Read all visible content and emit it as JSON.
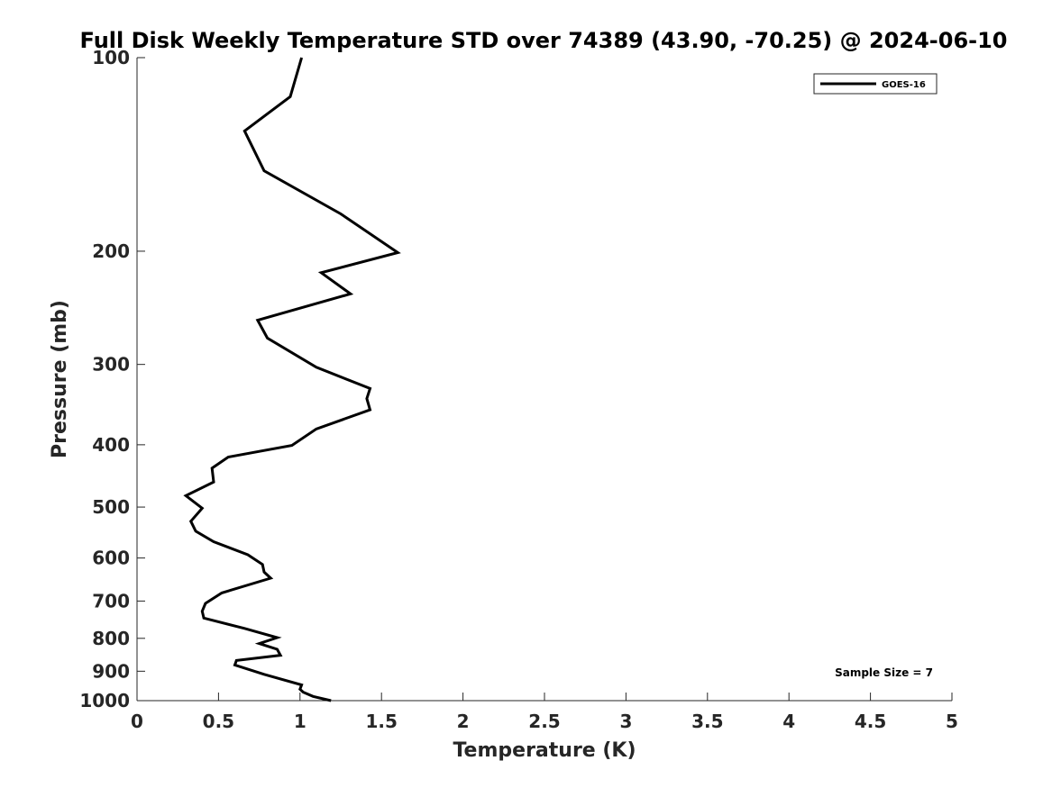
{
  "chart_data": {
    "type": "line",
    "title": "Full Disk Weekly Temperature STD over 74389 (43.90, -70.25) @ 2024-06-10",
    "xlabel": "Temperature (K)",
    "ylabel": "Pressure (mb)",
    "xlim": [
      0,
      5
    ],
    "ylim": [
      100,
      1000
    ],
    "y_scale": "log",
    "y_reversed": true,
    "x_ticks": [
      "0",
      "0.5",
      "1",
      "1.5",
      "2",
      "2.5",
      "3",
      "3.5",
      "4",
      "4.5",
      "5"
    ],
    "x_tick_values": [
      0,
      0.5,
      1,
      1.5,
      2,
      2.5,
      3,
      3.5,
      4,
      4.5,
      5
    ],
    "y_ticks": [
      "100",
      "200",
      "300",
      "400",
      "500",
      "600",
      "700",
      "800",
      "900",
      "1000"
    ],
    "y_tick_values": [
      100,
      200,
      300,
      400,
      500,
      600,
      700,
      800,
      900,
      1000
    ],
    "grid": false,
    "legend": {
      "placement": "top-right",
      "entries": [
        "GOES-16"
      ]
    },
    "annotation": "Sample Size = 7",
    "series": [
      {
        "name": "GOES-16",
        "color": "#000000",
        "points": [
          [
            1.01,
            100
          ],
          [
            0.94,
            115
          ],
          [
            0.66,
            130
          ],
          [
            0.78,
            150
          ],
          [
            1.25,
            175
          ],
          [
            1.6,
            201
          ],
          [
            1.13,
            216
          ],
          [
            1.31,
            233
          ],
          [
            0.74,
            256
          ],
          [
            0.8,
            273
          ],
          [
            1.1,
            303
          ],
          [
            1.43,
            327
          ],
          [
            1.41,
            339
          ],
          [
            1.43,
            353
          ],
          [
            1.1,
            378
          ],
          [
            0.95,
            401
          ],
          [
            0.56,
            418
          ],
          [
            0.46,
            435
          ],
          [
            0.47,
            457
          ],
          [
            0.3,
            480
          ],
          [
            0.4,
            502
          ],
          [
            0.33,
            526
          ],
          [
            0.36,
            545
          ],
          [
            0.47,
            566
          ],
          [
            0.68,
            593
          ],
          [
            0.77,
            614
          ],
          [
            0.78,
            631
          ],
          [
            0.82,
            645
          ],
          [
            0.52,
            680
          ],
          [
            0.42,
            706
          ],
          [
            0.4,
            726
          ],
          [
            0.41,
            744
          ],
          [
            0.66,
            772
          ],
          [
            0.86,
            798
          ],
          [
            0.75,
            815
          ],
          [
            0.86,
            832
          ],
          [
            0.88,
            850
          ],
          [
            0.61,
            866
          ],
          [
            0.6,
            880
          ],
          [
            0.78,
            910
          ],
          [
            1.01,
            945
          ],
          [
            1.0,
            960
          ],
          [
            1.02,
            970
          ],
          [
            1.08,
            985
          ],
          [
            1.19,
            1000
          ]
        ]
      }
    ]
  }
}
